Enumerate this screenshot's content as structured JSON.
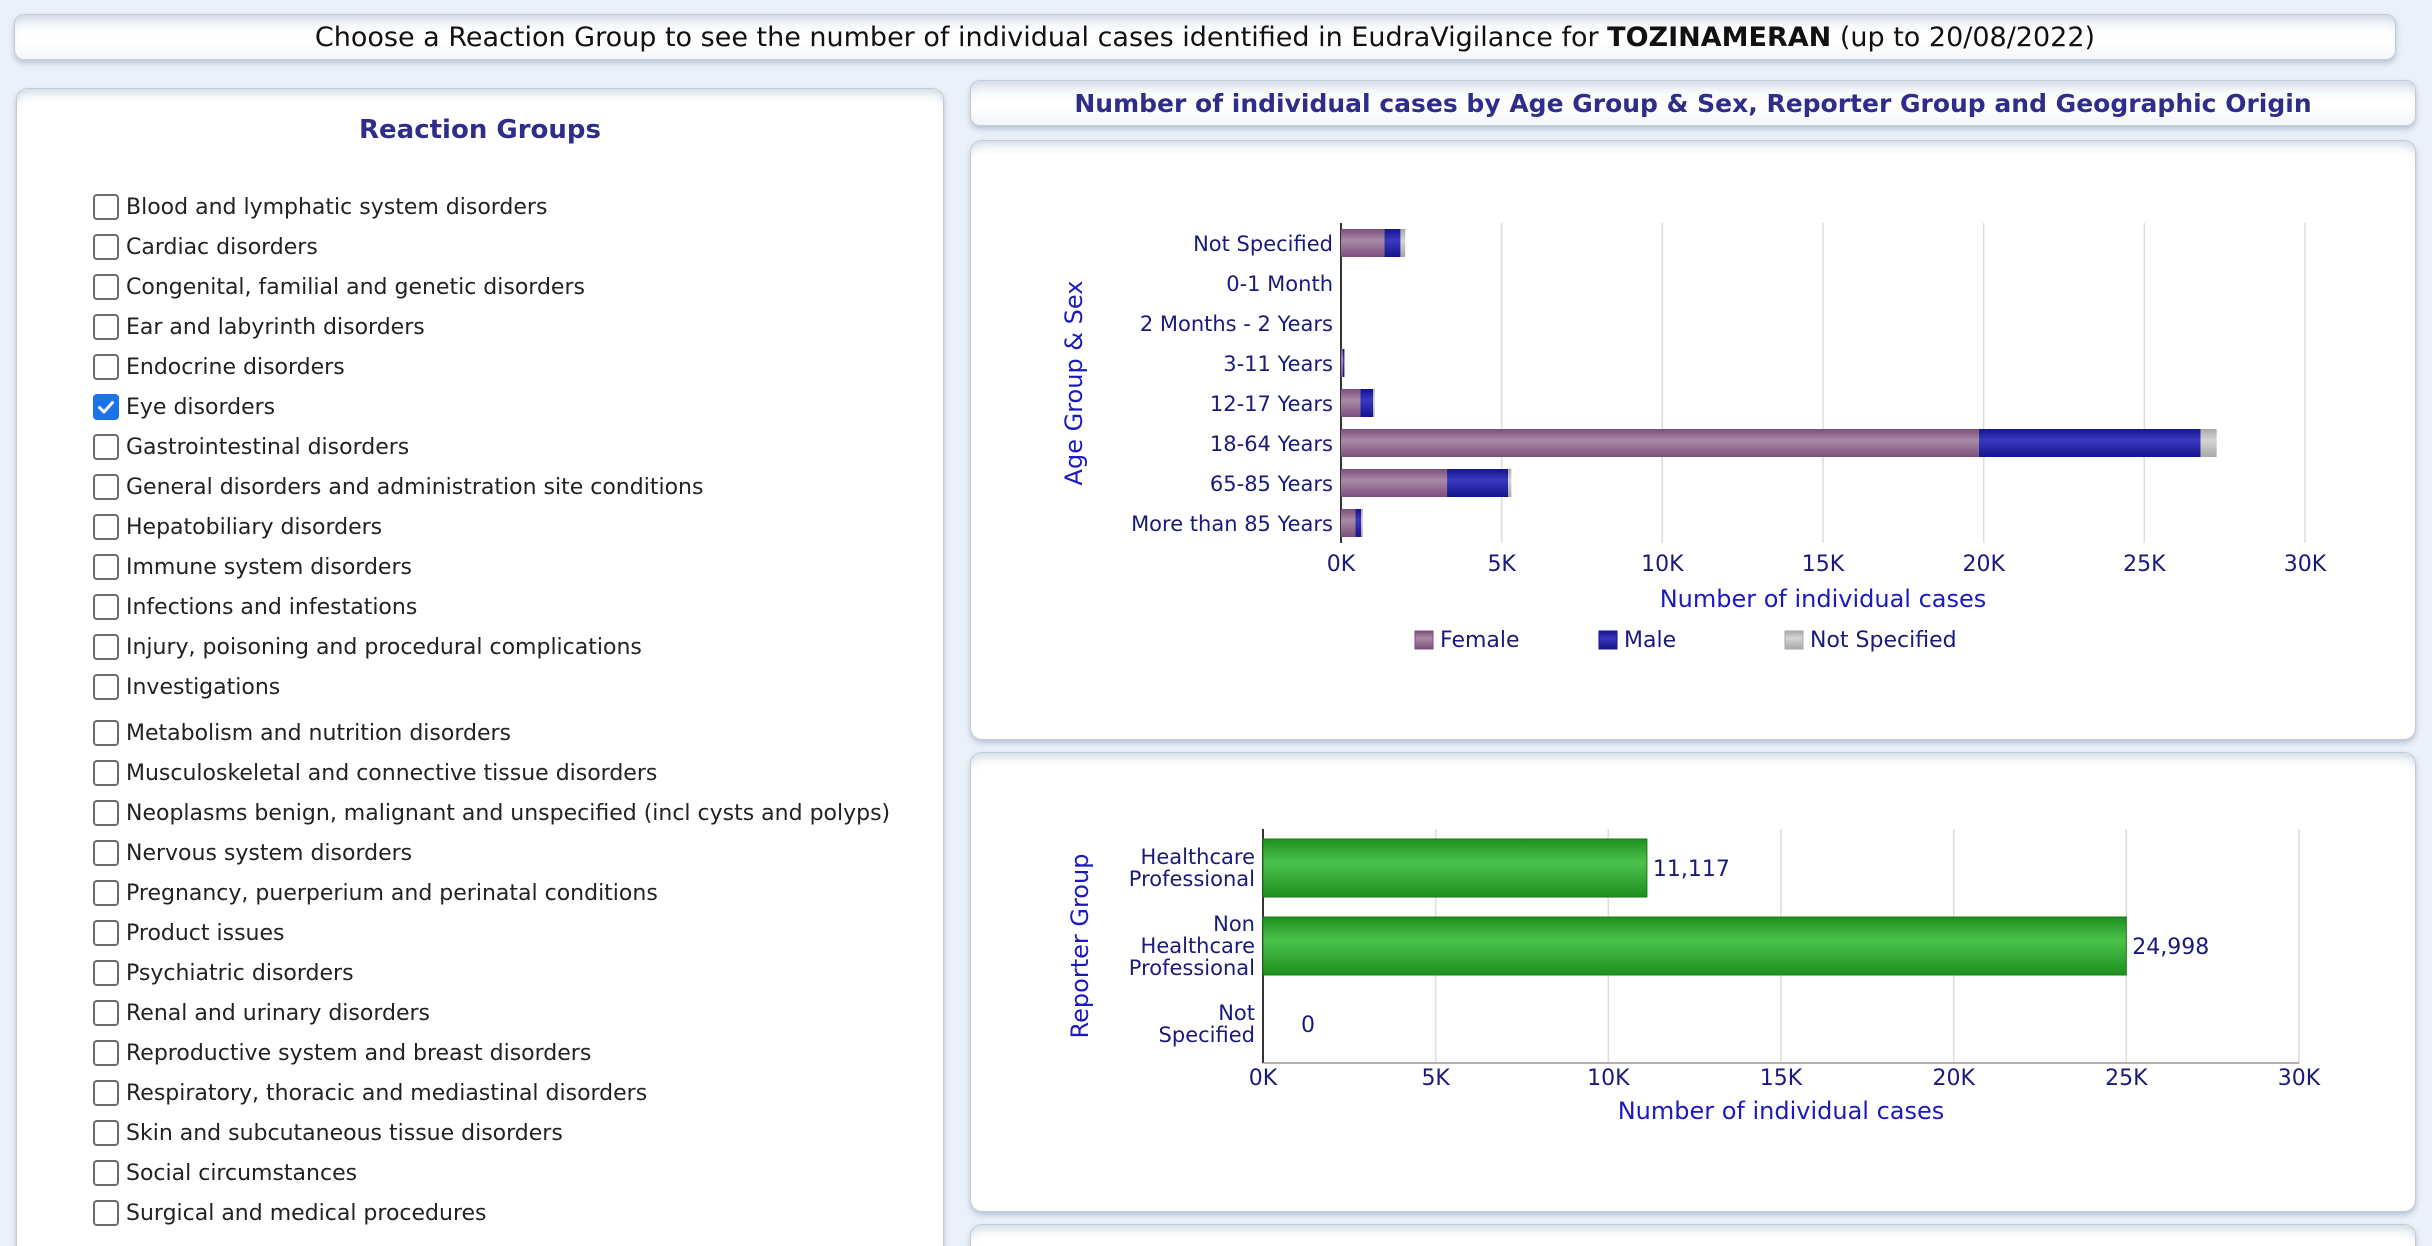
{
  "header": {
    "prefix": "Choose a Reaction Group to see the number of individual cases identified in EudraVigilance for ",
    "product": "TOZINAMERAN",
    "suffix": " (up to 20/08/2022)"
  },
  "reaction_groups": {
    "title": "Reaction Groups",
    "items": [
      {
        "label": "Blood and lymphatic system disorders",
        "checked": false
      },
      {
        "label": "Cardiac disorders",
        "checked": false
      },
      {
        "label": "Congenital, familial and genetic disorders",
        "checked": false
      },
      {
        "label": "Ear and labyrinth disorders",
        "checked": false
      },
      {
        "label": "Endocrine disorders",
        "checked": false
      },
      {
        "label": "Eye disorders",
        "checked": true
      },
      {
        "label": "Gastrointestinal disorders",
        "checked": false
      },
      {
        "label": "General disorders and administration site conditions",
        "checked": false
      },
      {
        "label": "Hepatobiliary disorders",
        "checked": false
      },
      {
        "label": "Immune system disorders",
        "checked": false
      },
      {
        "label": "Infections and infestations",
        "checked": false
      },
      {
        "label": "Injury, poisoning and procedural complications",
        "checked": false
      },
      {
        "label": "Investigations",
        "checked": false
      },
      {
        "label": "Metabolism and nutrition disorders",
        "checked": false
      },
      {
        "label": "Musculoskeletal and connective tissue disorders",
        "checked": false
      },
      {
        "label": "Neoplasms benign, malignant and unspecified (incl cysts and polyps)",
        "checked": false
      },
      {
        "label": "Nervous system disorders",
        "checked": false
      },
      {
        "label": "Pregnancy, puerperium and perinatal conditions",
        "checked": false
      },
      {
        "label": "Product issues",
        "checked": false
      },
      {
        "label": "Psychiatric disorders",
        "checked": false
      },
      {
        "label": "Renal and urinary disorders",
        "checked": false
      },
      {
        "label": "Reproductive system and breast disorders",
        "checked": false
      },
      {
        "label": "Respiratory, thoracic and mediastinal disorders",
        "checked": false
      },
      {
        "label": "Skin and subcutaneous tissue disorders",
        "checked": false
      },
      {
        "label": "Social circumstances",
        "checked": false
      },
      {
        "label": "Surgical and medical procedures",
        "checked": false
      }
    ]
  },
  "right_title": "Number of individual cases by Age Group & Sex, Reporter Group and Geographic Origin",
  "colors": {
    "female": "#7b4e7a",
    "male": "#14148c",
    "not_specified": "#a8a8a8",
    "green": "#1f8f1f",
    "axis_text": "#1a1a7a",
    "axis_title": "#1a1ac0"
  },
  "chart_data": [
    {
      "type": "bar",
      "orientation": "horizontal",
      "stacked": true,
      "categories": [
        "Not Specified",
        "0-1 Month",
        "2 Months - 2 Years",
        "3-11 Years",
        "12-17 Years",
        "18-64 Years",
        "65-85 Years",
        "More than 85 Years"
      ],
      "series": [
        {
          "name": "Female",
          "values": [
            1350,
            0,
            0,
            60,
            600,
            19850,
            3300,
            450
          ]
        },
        {
          "name": "Male",
          "values": [
            500,
            0,
            0,
            40,
            400,
            6900,
            1900,
            180
          ]
        },
        {
          "name": "Not Specified",
          "values": [
            150,
            0,
            0,
            0,
            30,
            500,
            100,
            20
          ]
        }
      ],
      "xlabel": "Number of individual cases",
      "ylabel": "Age Group & Sex",
      "xlim": [
        0,
        30000
      ],
      "ticks": [
        "0K",
        "5K",
        "10K",
        "15K",
        "20K",
        "25K",
        "30K"
      ],
      "grid": true,
      "legend": "bottom"
    },
    {
      "type": "bar",
      "orientation": "horizontal",
      "categories": [
        [
          "Healthcare",
          "Professional"
        ],
        [
          "Non",
          "Healthcare",
          "Professional"
        ],
        [
          "Not",
          "Specified"
        ]
      ],
      "values": [
        11117,
        24998,
        0
      ],
      "data_labels": [
        "11,117",
        "24,998",
        "0"
      ],
      "xlabel": "Number of individual cases",
      "ylabel": "Reporter Group",
      "xlim": [
        0,
        30000
      ],
      "ticks": [
        "0K",
        "5K",
        "10K",
        "15K",
        "20K",
        "25K",
        "30K"
      ],
      "grid": true
    }
  ]
}
